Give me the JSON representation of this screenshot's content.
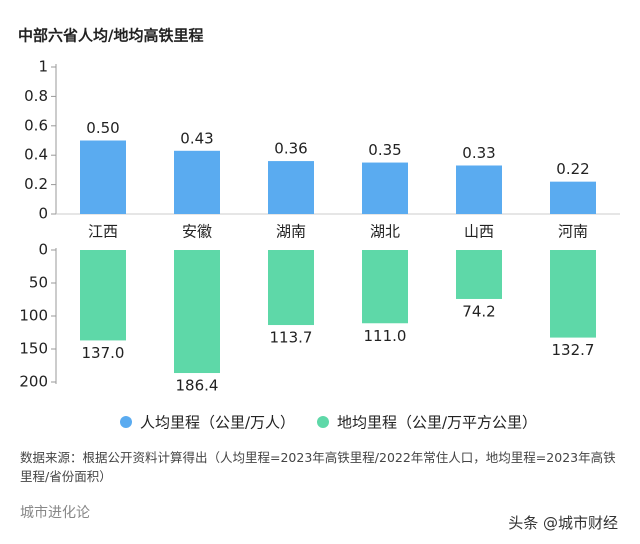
{
  "chart_data": {
    "type": "bar",
    "title": "中部六省人均/地均高铁里程",
    "categories": [
      "江西",
      "安徽",
      "湖南",
      "湖北",
      "山西",
      "河南"
    ],
    "series": [
      {
        "name": "人均里程（公里/万人）",
        "color": "#5aabf0",
        "axis": "y",
        "values": [
          0.5,
          0.43,
          0.36,
          0.35,
          0.33,
          0.22
        ],
        "value_labels": [
          "0.50",
          "0.43",
          "0.36",
          "0.35",
          "0.33",
          "0.22"
        ]
      },
      {
        "name": "地均里程（公里/万平方公里）",
        "color": "#5ed8a8",
        "axis": "y2",
        "values": [
          137.0,
          186.4,
          113.7,
          111.0,
          74.2,
          132.7
        ],
        "value_labels": [
          "137.0",
          "186.4",
          "113.7",
          "111.0",
          "74.2",
          "132.7"
        ]
      }
    ],
    "ylim": [
      0,
      1
    ],
    "yticks": [
      0,
      0.2,
      0.4,
      0.6,
      0.8,
      1
    ],
    "y2lim": [
      0,
      200
    ],
    "y2ticks": [
      0,
      50,
      100,
      150,
      200
    ]
  },
  "source": "数据来源：根据公开资料计算得出（人均里程=2023年高铁里程/2022年常住人口，地均里程=2023年高铁里程/省份面积）",
  "footer_left": "城市进化论",
  "footer_right": "头条 @城市财经"
}
